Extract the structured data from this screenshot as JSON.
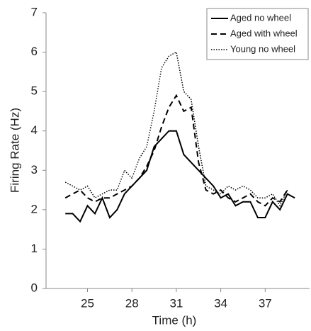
{
  "chart_data": {
    "type": "line",
    "x_label": "Time (h)",
    "y_label": "Firing Rate (Hz)",
    "x": [
      23.5,
      24,
      24.5,
      25,
      25.5,
      26,
      26.5,
      27,
      27.5,
      28,
      28.5,
      29,
      29.5,
      30,
      30.5,
      31,
      31.5,
      32,
      32.5,
      33,
      33.5,
      34,
      34.5,
      35,
      35.5,
      36,
      36.5,
      37,
      37.5,
      38,
      38.5,
      39
    ],
    "series": [
      {
        "name": "Aged no wheel",
        "color": "#000000",
        "dash": "solid",
        "values": [
          1.9,
          1.9,
          1.7,
          2.1,
          1.9,
          2.3,
          1.8,
          2.0,
          2.4,
          2.6,
          2.8,
          3.0,
          3.6,
          3.8,
          4.0,
          4.0,
          3.4,
          3.2,
          3.0,
          2.8,
          2.6,
          2.3,
          2.4,
          2.1,
          2.2,
          2.2,
          1.8,
          1.8,
          2.2,
          2.0,
          2.4,
          2.3
        ]
      },
      {
        "name": "Aged with wheel",
        "color": "#000000",
        "dash": "dashed",
        "values": [
          2.3,
          2.4,
          2.5,
          2.3,
          2.2,
          2.3,
          2.3,
          2.4,
          2.5,
          2.6,
          2.8,
          3.1,
          3.5,
          4.1,
          4.6,
          4.9,
          4.5,
          4.6,
          3.2,
          2.5,
          2.4,
          2.5,
          2.3,
          2.2,
          2.3,
          2.4,
          2.2,
          2.1,
          2.3,
          2.2,
          2.5,
          null
        ]
      },
      {
        "name": "Young no wheel",
        "color": "#000000",
        "dash": "dotted",
        "values": [
          2.7,
          2.6,
          2.5,
          2.6,
          2.3,
          2.4,
          2.5,
          2.5,
          3.0,
          2.8,
          3.3,
          3.6,
          4.5,
          5.6,
          5.9,
          6.0,
          5.0,
          4.8,
          3.6,
          2.6,
          2.5,
          2.4,
          2.6,
          2.5,
          2.6,
          2.5,
          2.3,
          2.3,
          2.4,
          2.1,
          2.5,
          null
        ]
      }
    ],
    "xlim": [
      22.2,
      40
    ],
    "xticks": [
      25,
      28,
      31,
      34,
      37
    ],
    "ylim": [
      0,
      7
    ],
    "yticks": [
      0,
      1,
      2,
      3,
      4,
      5,
      6,
      7
    ],
    "grid": false,
    "legend": "top-right"
  }
}
